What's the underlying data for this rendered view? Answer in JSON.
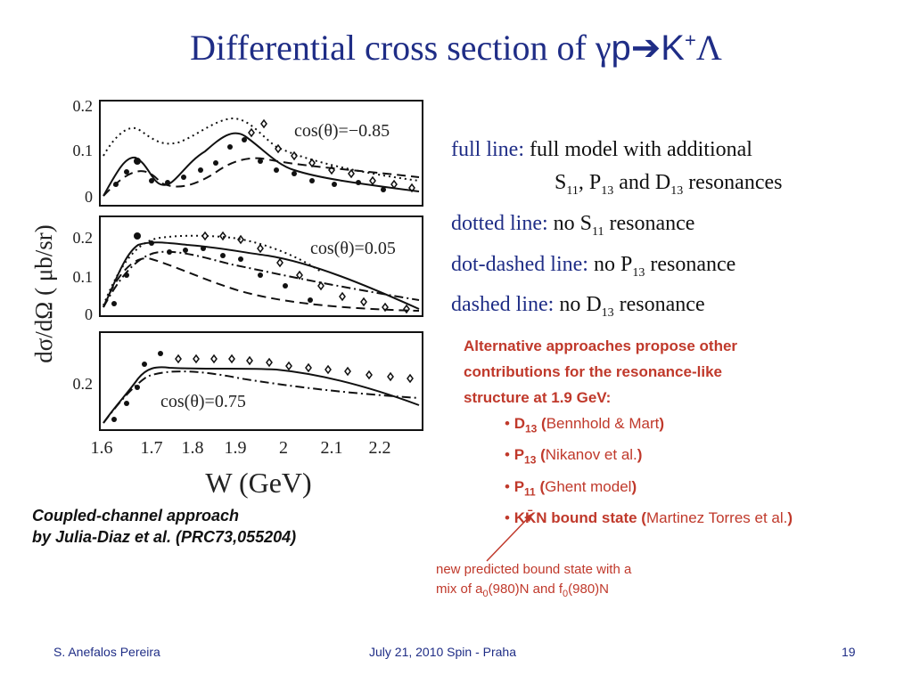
{
  "title": {
    "text": "Differential cross section of ",
    "gamma": "γ",
    "p": "p",
    "arrow": "➔",
    "kplus": "K",
    "sup": "+",
    "lambda": "Λ"
  },
  "figure": {
    "ylabel": "dσ/dΩ  ( μb/sr)",
    "xlabel": "W (GeV)",
    "xticks": [
      "1.6",
      "1.7",
      "1.8",
      "1.9",
      "2",
      "2.1",
      "2.2"
    ],
    "panels": [
      {
        "label": "cos(θ)=−0.85",
        "yticks": [
          "0.2",
          "0.1",
          "0"
        ]
      },
      {
        "label": "cos(θ)=0.05",
        "yticks": [
          "0.2",
          "0.1",
          "0"
        ]
      },
      {
        "label": "cos(θ)=0.75",
        "yticks": [
          "0.2"
        ]
      }
    ]
  },
  "legend": {
    "full_key": "full line:",
    "full_text": "full model with additional",
    "full_text2a": "S",
    "full_text2b": "11",
    "full_text2c": ", P",
    "full_text2d": "13",
    "full_text2e": " and D",
    "full_text2f": "13",
    "full_text2g": " resonances",
    "dotted_key": "dotted line:",
    "dotted_a": "no S",
    "dotted_b": "11",
    "dotted_c": " resonance",
    "dotdash_key": "dot-dashed line:",
    "dotdash_a": "no P",
    "dotdash_b": "13",
    "dotdash_c": " resonance",
    "dashed_key": "dashed line:",
    "dashed_a": "no D",
    "dashed_b": "13",
    "dashed_c": " resonance"
  },
  "alternatives": {
    "line1": "Alternative approaches propose other",
    "line2": "contributions for the resonance-like",
    "line3": "structure at 1.9 GeV:",
    "items": [
      {
        "bullet": "•",
        "sym": "D",
        "sub": "13",
        "open": " (",
        "ref": "Bennhold & Mart",
        "close": ")"
      },
      {
        "bullet": "•",
        "sym": "P",
        "sub": "13",
        "open": " (",
        "ref": "Nikanov et al.",
        "close": ")"
      },
      {
        "bullet": "•",
        "sym": "P",
        "sub": "11",
        "open": " (",
        "ref": "Ghent model",
        "close": ")"
      },
      {
        "bullet": "•",
        "sym": "KK̄N bound state",
        "sub": "",
        "open": " (",
        "ref": "Martinez Torres et al.",
        "close": ")"
      }
    ]
  },
  "caption": {
    "line1": "Coupled-channel approach",
    "line2": "by Julia-Diaz et al. (PRC73,055204)"
  },
  "note": {
    "line1": "new predicted bound state with a",
    "line2a": "mix of a",
    "line2b": "0",
    "line2c": "(980)N and f",
    "line2d": "0",
    "line2e": "(980)N"
  },
  "footer": {
    "author": "S. Anefalos Pereira",
    "center": "July 21, 2010 Spin - Praha",
    "page": "19"
  },
  "colors": {
    "title": "#1f2d86",
    "key": "#1f2d86",
    "accent_red": "#c0392b"
  }
}
